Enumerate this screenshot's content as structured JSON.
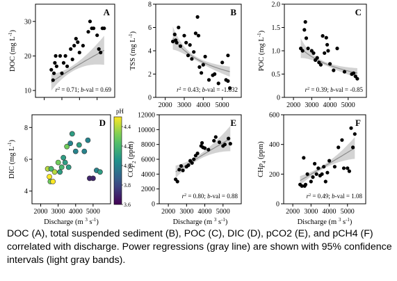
{
  "caption": "DOC (A), total suspended sediment (B), POC (C), DIC (D), pCO2 (E), and pCH4 (F) correlated with discharge. Power regressions (gray line) are shown with 95% confidence intervals (light gray bands).",
  "colorbar": {
    "label": "pH",
    "ticks": [
      "4.4",
      "4.2",
      "4.0",
      "3.8",
      "3.6"
    ],
    "tick_values": [
      4.4,
      4.2,
      4.0,
      3.8,
      3.6
    ],
    "range": [
      3.6,
      4.5
    ],
    "colormap": "viridis"
  },
  "colors": {
    "point": "#000000",
    "band": "#d3d3d3",
    "fit_line": "#8c8c8c",
    "axis": "#000000"
  },
  "chart_data": [
    {
      "panel": "A",
      "type": "scatter",
      "ylabel_parts": [
        "DOC (mg L",
        "-1",
        ")"
      ],
      "xlabel_parts": [],
      "xlim": [
        1500,
        6000
      ],
      "ylim": [
        8,
        35
      ],
      "xticks": [
        2000,
        3000,
        4000,
        5000
      ],
      "yticks": [
        10,
        20,
        30
      ],
      "xtick_labels": [],
      "ytick_labels": [
        "10",
        "20",
        "30"
      ],
      "annotation": {
        "r2": "0.71",
        "bval": "0.69"
      },
      "fit": {
        "a": 0.0575,
        "b": 0.69
      },
      "points": [
        [
          2400,
          16
        ],
        [
          2500,
          13
        ],
        [
          2550,
          15
        ],
        [
          2600,
          18
        ],
        [
          2650,
          20
        ],
        [
          2700,
          17
        ],
        [
          2900,
          20
        ],
        [
          3000,
          15
        ],
        [
          3100,
          18
        ],
        [
          3200,
          20
        ],
        [
          3300,
          17
        ],
        [
          3500,
          22
        ],
        [
          3600,
          19
        ],
        [
          3700,
          23
        ],
        [
          3800,
          25
        ],
        [
          3900,
          24
        ],
        [
          4000,
          21
        ],
        [
          4200,
          23
        ],
        [
          4500,
          27
        ],
        [
          4600,
          30
        ],
        [
          4700,
          28
        ],
        [
          4800,
          28
        ],
        [
          5000,
          26
        ],
        [
          5100,
          22
        ],
        [
          5200,
          21
        ],
        [
          5300,
          28
        ],
        [
          5400,
          28
        ]
      ]
    },
    {
      "panel": "B",
      "type": "scatter",
      "ylabel_parts": [
        "TSS (mg L",
        "-1",
        ")"
      ],
      "xlabel_parts": [],
      "xlim": [
        1500,
        6000
      ],
      "ylim": [
        0,
        8
      ],
      "xticks": [
        2000,
        3000,
        4000,
        5000
      ],
      "yticks": [
        0,
        2,
        4,
        6,
        8
      ],
      "xtick_labels": [
        "2000",
        "3000",
        "4000",
        "5000"
      ],
      "ytick_labels": [
        "0",
        "2",
        "4",
        "6",
        "8"
      ],
      "annotation": {
        "r2": "0.43",
        "bval": "-1.032"
      },
      "fit": {
        "a": 15670,
        "b": -1.032
      },
      "points": [
        [
          2400,
          4.8
        ],
        [
          2500,
          5.4
        ],
        [
          2550,
          4.9
        ],
        [
          2600,
          4.7
        ],
        [
          2700,
          6.0
        ],
        [
          2800,
          4.4
        ],
        [
          3000,
          5.3
        ],
        [
          3100,
          4.7
        ],
        [
          3200,
          3.6
        ],
        [
          3300,
          4.5
        ],
        [
          3400,
          3.3
        ],
        [
          3500,
          3.9
        ],
        [
          3600,
          5.5
        ],
        [
          3700,
          6.9
        ],
        [
          3750,
          5.3
        ],
        [
          3800,
          2.6
        ],
        [
          3900,
          2.1
        ],
        [
          4000,
          2.8
        ],
        [
          4100,
          3.5
        ],
        [
          4300,
          1.5
        ],
        [
          4500,
          1.9
        ],
        [
          4600,
          2.0
        ],
        [
          4800,
          1.2
        ],
        [
          5000,
          3.0
        ],
        [
          5200,
          1.5
        ],
        [
          5300,
          1.4
        ],
        [
          5400,
          0.8
        ],
        [
          5300,
          3.6
        ]
      ]
    },
    {
      "panel": "C",
      "type": "scatter",
      "ylabel_parts": [
        "POC (mg L",
        "-1",
        ")"
      ],
      "xlabel_parts": [],
      "xlim": [
        1500,
        6000
      ],
      "ylim": [
        0,
        2.0
      ],
      "xticks": [
        2000,
        3000,
        4000,
        5000
      ],
      "yticks": [
        0,
        0.5,
        1.0,
        1.5,
        2.0
      ],
      "xtick_labels": [
        "2000",
        "3000",
        "4000",
        "5000"
      ],
      "ytick_labels": [
        "0",
        "0.5",
        "1.0",
        "1.5",
        "2.0"
      ],
      "annotation": {
        "r2": "0.39",
        "bval": "-0.85"
      },
      "fit": {
        "a": 789,
        "b": -0.85
      },
      "points": [
        [
          2400,
          1.05
        ],
        [
          2500,
          1.0
        ],
        [
          2600,
          1.45
        ],
        [
          2650,
          1.62
        ],
        [
          2700,
          1.27
        ],
        [
          2800,
          1.05
        ],
        [
          3000,
          1.0
        ],
        [
          3100,
          0.95
        ],
        [
          3200,
          0.8
        ],
        [
          3300,
          0.85
        ],
        [
          3400,
          0.75
        ],
        [
          3500,
          0.7
        ],
        [
          3600,
          1.32
        ],
        [
          3700,
          0.95
        ],
        [
          3800,
          1.28
        ],
        [
          3850,
          1.13
        ],
        [
          3900,
          1.0
        ],
        [
          4000,
          0.72
        ],
        [
          4200,
          0.58
        ],
        [
          4400,
          1.05
        ],
        [
          4800,
          0.55
        ],
        [
          5200,
          0.5
        ],
        [
          5300,
          0.52
        ],
        [
          5400,
          0.45
        ],
        [
          5500,
          0.4
        ]
      ]
    },
    {
      "panel": "D",
      "type": "scatter",
      "ylabel_parts": [
        "DIC (mg L",
        "-1",
        ")"
      ],
      "xlabel_parts": [
        "Discharge (m ",
        "3",
        " s",
        "-1",
        ")"
      ],
      "xlim": [
        1500,
        6000
      ],
      "ylim": [
        3.2,
        8.8
      ],
      "xticks": [
        2000,
        3000,
        4000,
        5000
      ],
      "yticks": [
        4,
        6,
        8
      ],
      "xtick_labels": [
        "2000",
        "3000",
        "4000",
        "5000"
      ],
      "ytick_labels": [
        "4",
        "6",
        "8"
      ],
      "points": [
        [
          2400,
          5.4,
          4.4
        ],
        [
          2500,
          4.9,
          4.5
        ],
        [
          2550,
          4.6,
          4.3
        ],
        [
          2600,
          5.4,
          4.2
        ],
        [
          2700,
          4.6,
          4.5
        ],
        [
          2800,
          5.2,
          4.4
        ],
        [
          3000,
          5.8,
          4.3
        ],
        [
          3100,
          5.2,
          4.1
        ],
        [
          3200,
          5.5,
          4.2
        ],
        [
          3300,
          6.1,
          4.1
        ],
        [
          3400,
          5.8,
          4.1
        ],
        [
          3500,
          6.8,
          4.3
        ],
        [
          3600,
          5.5,
          4.1
        ],
        [
          3700,
          7.0,
          4.0
        ],
        [
          3800,
          7.6,
          4.1
        ],
        [
          4000,
          6.5,
          4.0
        ],
        [
          4200,
          6.9,
          4.1
        ],
        [
          4500,
          6.5,
          4.0
        ],
        [
          4700,
          7.2,
          4.0
        ],
        [
          4800,
          4.8,
          3.7
        ],
        [
          5000,
          4.8,
          3.7
        ],
        [
          5200,
          5.3,
          4.0
        ],
        [
          5400,
          5.2,
          4.1
        ]
      ]
    },
    {
      "panel": "E",
      "type": "scatter",
      "ylabel_parts": [
        "pCO",
        "2",
        " (ppm)"
      ],
      "xlabel_parts": [
        "Discharge (m ",
        "3",
        " s",
        "-1",
        ")"
      ],
      "xlim": [
        1500,
        6000
      ],
      "ylim": [
        0,
        12000
      ],
      "xticks": [
        2000,
        3000,
        4000,
        5000
      ],
      "yticks": [
        0,
        2000,
        4000,
        6000,
        8000,
        10000,
        12000
      ],
      "xtick_labels": [
        "2000",
        "3000",
        "4000",
        "5000"
      ],
      "ytick_labels": [
        "0",
        "2000",
        "4000",
        "6000",
        "8000",
        "10000",
        "12000"
      ],
      "annotation": {
        "r2": "0.80",
        "bval": "0.88"
      },
      "fit": {
        "a": 4.57,
        "b": 0.88
      },
      "points": [
        [
          2400,
          3300
        ],
        [
          2500,
          3000
        ],
        [
          2600,
          4600
        ],
        [
          2700,
          5100
        ],
        [
          2800,
          4500
        ],
        [
          3000,
          5000
        ],
        [
          3100,
          5200
        ],
        [
          3200,
          5800
        ],
        [
          3300,
          5500
        ],
        [
          3400,
          6000
        ],
        [
          3500,
          6500
        ],
        [
          3600,
          6800
        ],
        [
          3800,
          7800
        ],
        [
          3850,
          8200
        ],
        [
          3900,
          7600
        ],
        [
          4000,
          7500
        ],
        [
          4200,
          7300
        ],
        [
          4500,
          8500
        ],
        [
          4600,
          9000
        ],
        [
          4800,
          8300
        ],
        [
          5000,
          7800
        ],
        [
          5100,
          8000
        ],
        [
          5300,
          8800
        ],
        [
          5400,
          8100
        ]
      ]
    },
    {
      "panel": "F",
      "type": "scatter",
      "ylabel_parts": [
        "pCH",
        "4",
        " (ppm)"
      ],
      "xlabel_parts": [
        "Discharge (m ",
        "3",
        " s",
        "-1",
        ")"
      ],
      "xlim": [
        1500,
        6000
      ],
      "ylim": [
        0,
        600
      ],
      "xticks": [
        2000,
        3000,
        4000,
        5000
      ],
      "yticks": [
        0,
        200,
        400,
        600
      ],
      "xtick_labels": [
        "2000",
        "3000",
        "4000",
        "5000"
      ],
      "ytick_labels": [
        "0",
        "200",
        "400",
        "600"
      ],
      "annotation": {
        "r2": "0.49",
        "bval": "1.08"
      },
      "fit": {
        "a": 0.035,
        "b": 1.08
      },
      "points": [
        [
          2400,
          130
        ],
        [
          2500,
          120
        ],
        [
          2600,
          310
        ],
        [
          2650,
          120
        ],
        [
          2700,
          130
        ],
        [
          2800,
          200
        ],
        [
          3000,
          150
        ],
        [
          3100,
          180
        ],
        [
          3200,
          270
        ],
        [
          3300,
          200
        ],
        [
          3400,
          240
        ],
        [
          3500,
          190
        ],
        [
          3600,
          200
        ],
        [
          3700,
          250
        ],
        [
          3800,
          150
        ],
        [
          3900,
          210
        ],
        [
          4000,
          290
        ],
        [
          4300,
          250
        ],
        [
          4500,
          380
        ],
        [
          4700,
          430
        ],
        [
          4800,
          240
        ],
        [
          5000,
          240
        ],
        [
          5100,
          220
        ],
        [
          5200,
          510
        ],
        [
          5300,
          380
        ],
        [
          5400,
          470
        ]
      ]
    }
  ]
}
